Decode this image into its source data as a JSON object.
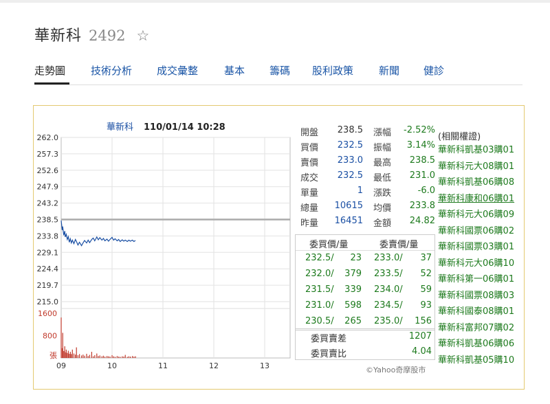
{
  "header": {
    "stock_name": "華新科",
    "stock_code": "2492",
    "favorite_icon": "star-outline-icon"
  },
  "tabs": [
    {
      "label": "走勢圖",
      "active": true
    },
    {
      "label": "技術分析"
    },
    {
      "label": "成交彙整"
    },
    {
      "label": "基本"
    },
    {
      "label": "籌碼"
    },
    {
      "label": "股利政策"
    },
    {
      "label": "新聞"
    },
    {
      "label": "健診"
    }
  ],
  "chart_data": {
    "type": "line",
    "title": "華新科",
    "timestamp": "110/01/14 10:28",
    "price_ticks": [
      "262.0",
      "257.3",
      "252.6",
      "247.9",
      "243.2",
      "238.5",
      "233.8",
      "229.1",
      "224.4",
      "219.7",
      "215.0"
    ],
    "price_range": [
      215.0,
      262.0
    ],
    "reference_price": 238.5,
    "volume_ticks": [
      "1600",
      "800"
    ],
    "volume_unit": "張",
    "volume_range": [
      0,
      1600
    ],
    "x_ticks": [
      "09",
      "10",
      "11",
      "12",
      "13"
    ],
    "x_range_hours": [
      9,
      13.5
    ],
    "price_series": [
      [
        9.0,
        238.2
      ],
      [
        9.02,
        235.5
      ],
      [
        9.03,
        236.5
      ],
      [
        9.05,
        234.0
      ],
      [
        9.07,
        235.2
      ],
      [
        9.08,
        233.5
      ],
      [
        9.1,
        234.3
      ],
      [
        9.12,
        232.8
      ],
      [
        9.14,
        233.6
      ],
      [
        9.16,
        232.0
      ],
      [
        9.18,
        233.0
      ],
      [
        9.2,
        231.8
      ],
      [
        9.22,
        232.6
      ],
      [
        9.25,
        231.6
      ],
      [
        9.28,
        232.8
      ],
      [
        9.3,
        232.2
      ],
      [
        9.33,
        231.2
      ],
      [
        9.36,
        232.0
      ],
      [
        9.4,
        231.0
      ],
      [
        9.43,
        231.8
      ],
      [
        9.46,
        232.5
      ],
      [
        9.5,
        231.8
      ],
      [
        9.53,
        232.6
      ],
      [
        9.56,
        231.9
      ],
      [
        9.6,
        232.8
      ],
      [
        9.63,
        233.2
      ],
      [
        9.66,
        232.4
      ],
      [
        9.7,
        233.5
      ],
      [
        9.73,
        232.7
      ],
      [
        9.76,
        233.3
      ],
      [
        9.8,
        232.6
      ],
      [
        9.83,
        233.1
      ],
      [
        9.86,
        232.4
      ],
      [
        9.9,
        232.9
      ],
      [
        9.93,
        232.3
      ],
      [
        9.96,
        232.8
      ],
      [
        10.0,
        233.4
      ],
      [
        10.03,
        232.6
      ],
      [
        10.06,
        233.0
      ],
      [
        10.1,
        232.4
      ],
      [
        10.13,
        232.8
      ],
      [
        10.16,
        232.2
      ],
      [
        10.2,
        232.7
      ],
      [
        10.23,
        232.3
      ],
      [
        10.26,
        232.6
      ],
      [
        10.3,
        232.2
      ],
      [
        10.33,
        232.6
      ],
      [
        10.36,
        232.3
      ],
      [
        10.4,
        232.6
      ],
      [
        10.43,
        232.2
      ],
      [
        10.46,
        232.5
      ]
    ],
    "volume_series": [
      [
        9.0,
        1450
      ],
      [
        9.02,
        350
      ],
      [
        9.03,
        900
      ],
      [
        9.05,
        250
      ],
      [
        9.07,
        420
      ],
      [
        9.08,
        200
      ],
      [
        9.1,
        300
      ],
      [
        9.12,
        180
      ],
      [
        9.14,
        260
      ],
      [
        9.16,
        150
      ],
      [
        9.18,
        220
      ],
      [
        9.2,
        140
      ],
      [
        9.22,
        300
      ],
      [
        9.25,
        160
      ],
      [
        9.28,
        120
      ],
      [
        9.3,
        380
      ],
      [
        9.33,
        100
      ],
      [
        9.36,
        140
      ],
      [
        9.4,
        90
      ],
      [
        9.43,
        120
      ],
      [
        9.46,
        80
      ],
      [
        9.5,
        150
      ],
      [
        9.53,
        70
      ],
      [
        9.56,
        110
      ],
      [
        9.6,
        220
      ],
      [
        9.63,
        60
      ],
      [
        9.66,
        100
      ],
      [
        9.7,
        160
      ],
      [
        9.73,
        70
      ],
      [
        9.76,
        90
      ],
      [
        9.8,
        60
      ],
      [
        9.83,
        80
      ],
      [
        9.86,
        50
      ],
      [
        9.9,
        70
      ],
      [
        9.93,
        60
      ],
      [
        9.96,
        50
      ],
      [
        10.0,
        100
      ],
      [
        10.03,
        60
      ],
      [
        10.06,
        40
      ],
      [
        10.1,
        70
      ],
      [
        10.13,
        50
      ],
      [
        10.16,
        40
      ],
      [
        10.2,
        60
      ],
      [
        10.23,
        50
      ],
      [
        10.26,
        110
      ],
      [
        10.3,
        40
      ],
      [
        10.33,
        60
      ],
      [
        10.36,
        50
      ],
      [
        10.4,
        70
      ],
      [
        10.43,
        50
      ],
      [
        10.46,
        60
      ]
    ]
  },
  "quote": {
    "rows": [
      {
        "l1": "開盤",
        "v1": "238.5",
        "l2": "漲幅",
        "v2": "-2.52%"
      },
      {
        "l1": "買價",
        "v1": "232.5",
        "l2": "振幅",
        "v2": "3.14%"
      },
      {
        "l1": "賣價",
        "v1": "233.0",
        "l2": "最高",
        "v2": "238.5"
      },
      {
        "l1": "成交",
        "v1": "232.5",
        "l2": "最低",
        "v2": "231.0"
      },
      {
        "l1": "單量",
        "v1": "1",
        "l2": "漲跌",
        "v2": "-6.0"
      },
      {
        "l1": "總量",
        "v1": "10615",
        "l2": "均價",
        "v2": "233.8"
      },
      {
        "l1": "昨量",
        "v1": "16451",
        "l2": "金額",
        "v2": "24.82"
      }
    ]
  },
  "order_book": {
    "bid_header": "委買價/量",
    "ask_header": "委賣價/量",
    "rows": [
      {
        "bid_price": "232.5/",
        "bid_qty": "23",
        "ask_price": "233.0/",
        "ask_qty": "37"
      },
      {
        "bid_price": "232.0/",
        "bid_qty": "379",
        "ask_price": "233.5/",
        "ask_qty": "52"
      },
      {
        "bid_price": "231.5/",
        "bid_qty": "339",
        "ask_price": "234.0/",
        "ask_qty": "59"
      },
      {
        "bid_price": "231.0/",
        "bid_qty": "598",
        "ask_price": "234.5/",
        "ask_qty": "93"
      },
      {
        "bid_price": "230.5/",
        "bid_qty": "265",
        "ask_price": "235.0/",
        "ask_qty": "156"
      }
    ],
    "diff_label": "委買賣差",
    "diff_value": "1207",
    "ratio_label": "委買賣比",
    "ratio_value": "4.04"
  },
  "copyright": "©Yahoo奇摩股市",
  "warrants": {
    "title": "(相關權證)",
    "items": [
      "華新科凱基03購01",
      "華新科元大08購01",
      "華新科凱基06購08",
      "華新科康和06購01",
      "華新科元大06購09",
      "華新科國票06購02",
      "華新科國票03購01",
      "華新科元大06購10",
      "華新科第一06購01",
      "華新科國票08購03",
      "華新科國泰08購01",
      "華新科富邦07購02",
      "華新科凱基06購06",
      "華新科凱基05購10"
    ],
    "highlighted_index": 3
  },
  "colors": {
    "price_line": "#1a4fa3",
    "reference_line": "#aaaaaa",
    "volume_bar": "#c0392b",
    "volume_tick": "#c0392b",
    "panel_border": "#e3c970",
    "up_green": "#1d7a1d",
    "tab_blue": "#1a55a6"
  }
}
